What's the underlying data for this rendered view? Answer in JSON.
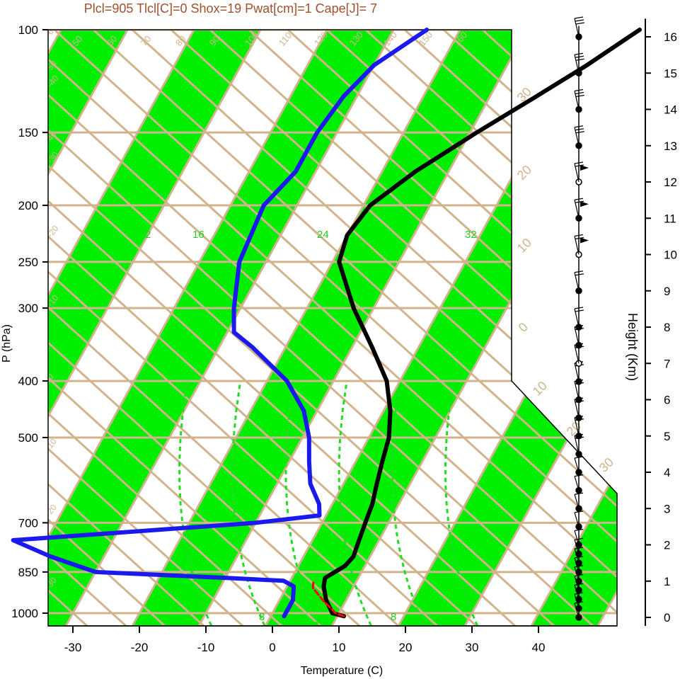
{
  "header": {
    "stats_line": "Plcl=905 Tlcl[C]=0 Shox=19 Pwat[cm]=1 Cape[J]= 7"
  },
  "colors": {
    "green_band": "#00ee00",
    "tan_lines": "#d2b48c",
    "temperature": "#000000",
    "dewpoint": "#1a1aee",
    "parcel": "#ff0000",
    "stats_text": "#a0522d"
  },
  "chart_data": {
    "type": "line",
    "subtype": "skew-T log-P diagram",
    "xlabel": "Temperature (C)",
    "ylabel": "P (hPa)",
    "y2label": "Height (Km)",
    "x_ticks": [
      -30,
      -20,
      -10,
      0,
      10,
      20,
      30,
      40
    ],
    "y_ticks": [
      100,
      150,
      200,
      250,
      300,
      400,
      500,
      700,
      850,
      1000
    ],
    "y_scale": "log",
    "y_reversed": true,
    "height_ticks": [
      0,
      1,
      2,
      3,
      4,
      5,
      6,
      7,
      8,
      9,
      10,
      11,
      12,
      13,
      14,
      15,
      16
    ],
    "isotherm_labels": [
      "50",
      "60",
      "70",
      "80",
      "90",
      "100",
      "110",
      "120",
      "130",
      "140",
      "150",
      "160"
    ],
    "dry_adiabat_labels": [
      "-40",
      "-30",
      "-20",
      "-10",
      "0",
      "10",
      "20",
      "30",
      "40",
      "50",
      "60"
    ],
    "edge_labels": [
      "30",
      "20",
      "10",
      "0",
      "10",
      "20",
      "30"
    ],
    "mixing_ratio_labels": [
      "2",
      "16",
      "24",
      "32",
      "3",
      "8"
    ],
    "series": [
      {
        "name": "Temperature",
        "p": [
          1012,
          1000,
          950,
          900,
          870,
          850,
          830,
          800,
          750,
          700,
          650,
          600,
          550,
          500,
          450,
          400,
          350,
          300,
          250,
          225,
          200,
          175,
          150,
          130,
          115,
          100
        ],
        "t": [
          11,
          9,
          7,
          5.5,
          5,
          6,
          7,
          7.5,
          7,
          6.5,
          6,
          5,
          4,
          3,
          1,
          -2,
          -7,
          -13,
          -19,
          -20,
          -19,
          -15,
          -9,
          -3,
          2,
          7
        ]
      },
      {
        "name": "Dewpoint",
        "p": [
          1012,
          1000,
          950,
          900,
          880,
          870,
          860,
          850,
          800,
          750,
          700,
          680,
          650,
          600,
          550,
          500,
          450,
          400,
          350,
          330,
          300,
          250,
          200,
          175,
          150,
          130,
          115,
          100
        ],
        "t": [
          2,
          2,
          2,
          1,
          -1,
          -10,
          -20,
          -30,
          -38,
          -45,
          -10,
          -1,
          -2,
          -5,
          -7,
          -9,
          -12,
          -17,
          -25,
          -29,
          -31,
          -34,
          -35,
          -33,
          -33,
          -32,
          -30,
          -25
        ]
      },
      {
        "name": "Parcel",
        "p": [
          1012,
          1000,
          950,
          905,
          880
        ],
        "t": [
          11,
          9.5,
          6.5,
          4,
          3.5
        ]
      }
    ],
    "wind_heights_km": [
      0,
      0.25,
      0.5,
      0.75,
      1,
      1.25,
      1.5,
      1.75,
      2,
      2.5,
      3,
      3.5,
      4,
      4.5,
      5,
      5.5,
      6,
      6.5,
      7,
      7.5,
      8,
      9,
      10,
      11,
      12,
      13,
      14,
      15,
      16
    ]
  }
}
